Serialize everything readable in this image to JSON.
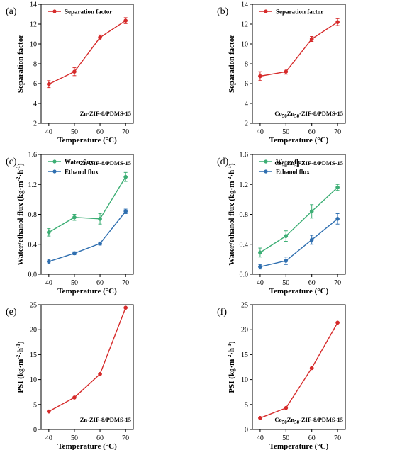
{
  "chart_data": [
    {
      "id": "a",
      "type": "line",
      "panel_label": "(a)",
      "xlabel": "Temperature (°C)",
      "ylabel": "Separation factor",
      "xlim": [
        37,
        73
      ],
      "ylim": [
        2,
        14
      ],
      "xticks": [
        40,
        50,
        60,
        70
      ],
      "yticks": [
        2,
        4,
        6,
        8,
        10,
        12,
        14
      ],
      "annotation": "Zn-ZIF-8/PDMS-15",
      "legend_position": "top-left",
      "x": [
        40,
        50,
        60,
        70
      ],
      "series": [
        {
          "name": "Separation factor",
          "color": "#d62a2a",
          "values": [
            5.95,
            7.2,
            10.65,
            12.35
          ],
          "errors": [
            0.35,
            0.4,
            0.25,
            0.3
          ]
        }
      ]
    },
    {
      "id": "b",
      "type": "line",
      "panel_label": "(b)",
      "xlabel": "Temperature (°C)",
      "ylabel": "Separation factor",
      "xlim": [
        37,
        73
      ],
      "ylim": [
        2,
        14
      ],
      "xticks": [
        40,
        50,
        60,
        70
      ],
      "yticks": [
        2,
        4,
        6,
        8,
        10,
        12,
        14
      ],
      "annotation": "Co50Zn50-ZIF-8/PDMS-15",
      "legend_position": "top-left",
      "x": [
        40,
        50,
        60,
        70
      ],
      "series": [
        {
          "name": "Separation factor",
          "color": "#d62a2a",
          "values": [
            6.75,
            7.2,
            10.5,
            12.2
          ],
          "errors": [
            0.45,
            0.25,
            0.25,
            0.35
          ]
        }
      ]
    },
    {
      "id": "c",
      "type": "line",
      "panel_label": "(c)",
      "xlabel": "Temperature (°C)",
      "ylabel": "Water/ethanol flux (kg·m-2·h-1)",
      "xlim": [
        37,
        73
      ],
      "ylim": [
        0.0,
        1.6
      ],
      "xticks": [
        40,
        50,
        60,
        70
      ],
      "yticks": [
        0.0,
        0.4,
        0.8,
        1.2,
        1.6
      ],
      "annotation": "Zn-ZIF-8/PDMS-15",
      "legend_position": "top-left",
      "x": [
        40,
        50,
        60,
        70
      ],
      "series": [
        {
          "name": "Water flux",
          "color": "#3cae74",
          "values": [
            0.56,
            0.76,
            0.74,
            1.3
          ],
          "errors": [
            0.05,
            0.04,
            0.07,
            0.06
          ]
        },
        {
          "name": "Ethanol flux",
          "color": "#2f6fb0",
          "values": [
            0.17,
            0.28,
            0.41,
            0.84
          ],
          "errors": [
            0.03,
            0.02,
            0.02,
            0.03
          ]
        }
      ]
    },
    {
      "id": "d",
      "type": "line",
      "panel_label": "(d)",
      "xlabel": "Temperature (°C)",
      "ylabel": "Water/ethanol flux (kg·m-2·h-1)",
      "xlim": [
        37,
        73
      ],
      "ylim": [
        0.0,
        1.6
      ],
      "xticks": [
        40,
        50,
        60,
        70
      ],
      "yticks": [
        0.0,
        0.4,
        0.8,
        1.2,
        1.6
      ],
      "annotation": "Co50Zn50-ZIF-8/PDMS-15",
      "legend_position": "top-left",
      "x": [
        40,
        50,
        60,
        70
      ],
      "series": [
        {
          "name": "Water flux",
          "color": "#3cae74",
          "values": [
            0.29,
            0.51,
            0.84,
            1.16
          ],
          "errors": [
            0.06,
            0.07,
            0.09,
            0.04
          ]
        },
        {
          "name": "Ethanol flux",
          "color": "#2f6fb0",
          "values": [
            0.1,
            0.18,
            0.46,
            0.74
          ],
          "errors": [
            0.03,
            0.05,
            0.06,
            0.07
          ]
        }
      ]
    },
    {
      "id": "e",
      "type": "line",
      "panel_label": "(e)",
      "xlabel": "Temperature (°C)",
      "ylabel": "PSI (kg·m-2·h-1)",
      "xlim": [
        37,
        73
      ],
      "ylim": [
        0,
        25
      ],
      "xticks": [
        40,
        50,
        60,
        70
      ],
      "yticks": [
        0,
        5,
        10,
        15,
        20,
        25
      ],
      "annotation": "Zn-ZIF-8/PDMS-15",
      "x": [
        40,
        50,
        60,
        70
      ],
      "series": [
        {
          "color": "#d62a2a",
          "values": [
            3.6,
            6.4,
            11.1,
            24.4
          ]
        }
      ]
    },
    {
      "id": "f",
      "type": "line",
      "panel_label": "(f)",
      "xlabel": "Temperature (°C)",
      "ylabel": "PSI (kg·m-2·h-1)",
      "xlim": [
        37,
        73
      ],
      "ylim": [
        0,
        25
      ],
      "xticks": [
        40,
        50,
        60,
        70
      ],
      "yticks": [
        0,
        5,
        10,
        15,
        20,
        25
      ],
      "annotation": "Co50Zn50-ZIF-8/PDMS-15",
      "x": [
        40,
        50,
        60,
        70
      ],
      "series": [
        {
          "color": "#d62a2a",
          "values": [
            2.3,
            4.3,
            12.3,
            21.4
          ]
        }
      ]
    }
  ]
}
